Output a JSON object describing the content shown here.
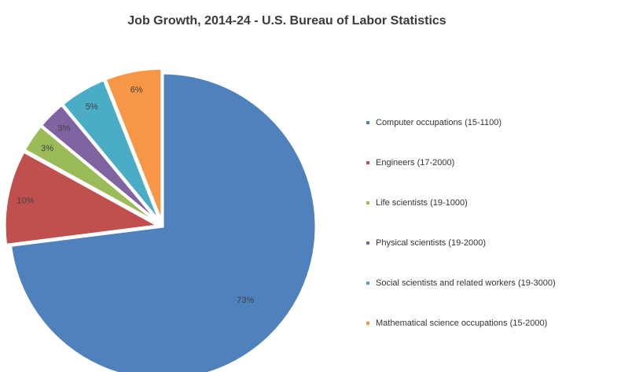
{
  "chart_data": {
    "type": "pie",
    "title": "Job Growth, 2014-24 - U.S. Bureau of Labor Statistics",
    "legend_position": "right",
    "slices": [
      {
        "name": "Computer occupations (15-1100)",
        "value": 73,
        "label": "73%",
        "color": "#4f81bd"
      },
      {
        "name": "Engineers (17-2000)",
        "value": 10,
        "label": "10%",
        "color": "#c0504d"
      },
      {
        "name": "Life scientists (19-1000)",
        "value": 3,
        "label": "3%",
        "color": "#9bbb59"
      },
      {
        "name": "Physical scientists (19-2000)",
        "value": 3,
        "label": "3%",
        "color": "#8064a2"
      },
      {
        "name": "Social scientists and related workers (19-3000)",
        "value": 5,
        "label": "5%",
        "color": "#4bacc6"
      },
      {
        "name": "Mathematical science occupations (15-2000)",
        "value": 6,
        "label": "6%",
        "color": "#f79646"
      }
    ]
  }
}
